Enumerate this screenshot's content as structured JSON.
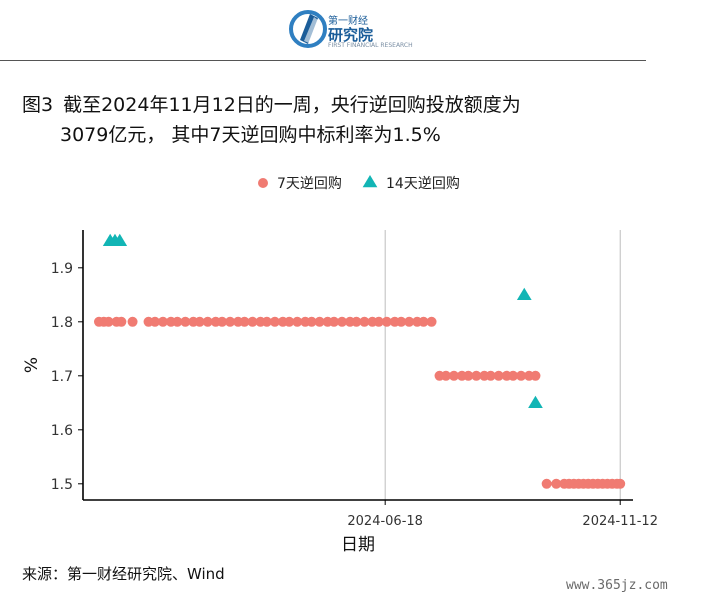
{
  "logo": {
    "line1": "第一财经",
    "line2": "研究院",
    "line3": "FIRST FINANCIAL RESEARCH"
  },
  "title": {
    "label": "图3",
    "line1": "截至2024年11月12日的一周，央行逆回购投放额度为",
    "line2": "3079亿元， 其中7天逆回购中标利率为1.5%"
  },
  "source": "来源：第一财经研究院、Wind",
  "watermark": "www.365jz.com",
  "chart_data": {
    "type": "scatter",
    "xlabel": "日期",
    "ylabel": "%",
    "x_ticks": [
      "2024-06-18",
      "2024-11-12"
    ],
    "xlim": [
      "2023-12-12",
      "2024-11-20"
    ],
    "ylim": [
      1.47,
      1.97
    ],
    "y_ticks": [
      1.5,
      1.6,
      1.7,
      1.8,
      1.9
    ],
    "grid": "vertical major at x ticks",
    "legend_position": "top",
    "series": [
      {
        "name": "7天逆回购",
        "marker": "circle",
        "color": "#f07b72",
        "points": [
          [
            "2023-12-22",
            1.8
          ],
          [
            "2023-12-25",
            1.8
          ],
          [
            "2023-12-28",
            1.8
          ],
          [
            "2024-01-02",
            1.8
          ],
          [
            "2024-01-05",
            1.8
          ],
          [
            "2024-01-12",
            1.8
          ],
          [
            "2024-01-22",
            1.8
          ],
          [
            "2024-01-26",
            1.8
          ],
          [
            "2024-01-31",
            1.8
          ],
          [
            "2024-02-05",
            1.8
          ],
          [
            "2024-02-09",
            1.8
          ],
          [
            "2024-02-14",
            1.8
          ],
          [
            "2024-02-19",
            1.8
          ],
          [
            "2024-02-23",
            1.8
          ],
          [
            "2024-02-28",
            1.8
          ],
          [
            "2024-03-04",
            1.8
          ],
          [
            "2024-03-08",
            1.8
          ],
          [
            "2024-03-13",
            1.8
          ],
          [
            "2024-03-18",
            1.8
          ],
          [
            "2024-03-22",
            1.8
          ],
          [
            "2024-03-27",
            1.8
          ],
          [
            "2024-04-01",
            1.8
          ],
          [
            "2024-04-05",
            1.8
          ],
          [
            "2024-04-10",
            1.8
          ],
          [
            "2024-04-15",
            1.8
          ],
          [
            "2024-04-19",
            1.8
          ],
          [
            "2024-04-24",
            1.8
          ],
          [
            "2024-04-29",
            1.8
          ],
          [
            "2024-05-03",
            1.8
          ],
          [
            "2024-05-08",
            1.8
          ],
          [
            "2024-05-13",
            1.8
          ],
          [
            "2024-05-17",
            1.8
          ],
          [
            "2024-05-22",
            1.8
          ],
          [
            "2024-05-27",
            1.8
          ],
          [
            "2024-05-31",
            1.8
          ],
          [
            "2024-06-05",
            1.8
          ],
          [
            "2024-06-10",
            1.8
          ],
          [
            "2024-06-14",
            1.8
          ],
          [
            "2024-06-19",
            1.8
          ],
          [
            "2024-06-24",
            1.8
          ],
          [
            "2024-06-28",
            1.8
          ],
          [
            "2024-07-03",
            1.8
          ],
          [
            "2024-07-08",
            1.8
          ],
          [
            "2024-07-12",
            1.8
          ],
          [
            "2024-07-17",
            1.8
          ],
          [
            "2024-07-22",
            1.7
          ],
          [
            "2024-07-26",
            1.7
          ],
          [
            "2024-07-31",
            1.7
          ],
          [
            "2024-08-05",
            1.7
          ],
          [
            "2024-08-09",
            1.7
          ],
          [
            "2024-08-14",
            1.7
          ],
          [
            "2024-08-19",
            1.7
          ],
          [
            "2024-08-23",
            1.7
          ],
          [
            "2024-08-28",
            1.7
          ],
          [
            "2024-09-02",
            1.7
          ],
          [
            "2024-09-06",
            1.7
          ],
          [
            "2024-09-11",
            1.7
          ],
          [
            "2024-09-16",
            1.7
          ],
          [
            "2024-09-20",
            1.7
          ],
          [
            "2024-09-27",
            1.5
          ],
          [
            "2024-10-03",
            1.5
          ],
          [
            "2024-10-08",
            1.5
          ],
          [
            "2024-10-11",
            1.5
          ],
          [
            "2024-10-14",
            1.5
          ],
          [
            "2024-10-17",
            1.5
          ],
          [
            "2024-10-20",
            1.5
          ],
          [
            "2024-10-23",
            1.5
          ],
          [
            "2024-10-26",
            1.5
          ],
          [
            "2024-10-29",
            1.5
          ],
          [
            "2024-11-01",
            1.5
          ],
          [
            "2024-11-04",
            1.5
          ],
          [
            "2024-11-07",
            1.5
          ],
          [
            "2024-11-10",
            1.5
          ],
          [
            "2024-11-12",
            1.5
          ]
        ]
      },
      {
        "name": "14天逆回购",
        "marker": "triangle",
        "color": "#12b5b5",
        "points": [
          [
            "2023-12-29",
            1.95
          ],
          [
            "2024-01-01",
            1.95
          ],
          [
            "2024-01-04",
            1.95
          ],
          [
            "2024-09-13",
            1.85
          ],
          [
            "2024-09-20",
            1.65
          ]
        ]
      }
    ]
  }
}
